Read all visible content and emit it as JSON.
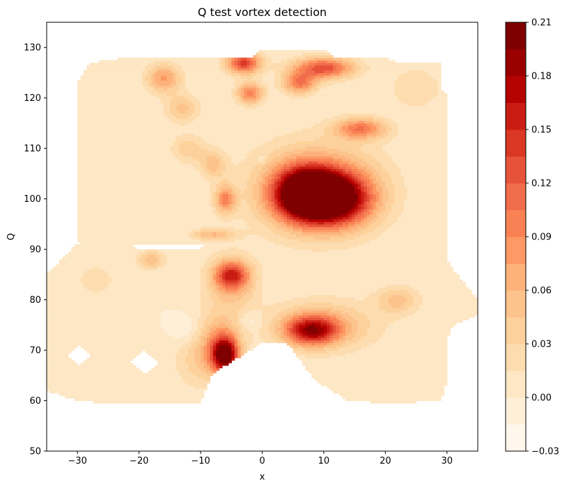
{
  "chart_data": {
    "type": "heatmap",
    "subtype": "filled-contour",
    "title": "Q test vortex detection",
    "xlabel": "x",
    "ylabel": "Q",
    "xlim": [
      -35,
      35
    ],
    "ylim": [
      50,
      135
    ],
    "xticks": [
      -30,
      -20,
      -10,
      0,
      10,
      20,
      30
    ],
    "yticks": [
      50,
      60,
      70,
      80,
      90,
      100,
      110,
      120,
      130
    ],
    "colormap": "OrRd",
    "colorbar": {
      "min": -0.03,
      "max": 0.21,
      "levels": [
        -0.03,
        -0.015,
        0.0,
        0.015,
        0.03,
        0.045,
        0.06,
        0.075,
        0.09,
        0.105,
        0.12,
        0.135,
        0.15,
        0.165,
        0.18,
        0.195,
        0.21
      ],
      "ticks": [
        "0.21",
        "0.18",
        "0.15",
        "0.12",
        "0.09",
        "0.06",
        "0.03",
        "0.00",
        "−0.03"
      ],
      "tick_values": [
        0.21,
        0.18,
        0.15,
        0.12,
        0.09,
        0.06,
        0.03,
        0.0,
        -0.03
      ]
    },
    "background_value": 0.0,
    "data_region_polygon": [
      [
        -35,
        85
      ],
      [
        -31,
        90
      ],
      [
        -30,
        91
      ],
      [
        -21,
        91
      ],
      [
        -20,
        90
      ],
      [
        -10,
        90
      ],
      [
        -9,
        91
      ],
      [
        -29,
        91
      ],
      [
        -30,
        92
      ],
      [
        -30,
        123
      ],
      [
        -28,
        127
      ],
      [
        -22,
        128
      ],
      [
        -2,
        128
      ],
      [
        0,
        129.5
      ],
      [
        10,
        129.5
      ],
      [
        12,
        128
      ],
      [
        20,
        128
      ],
      [
        22,
        127
      ],
      [
        29,
        127
      ],
      [
        29,
        122
      ],
      [
        30,
        121
      ],
      [
        30,
        88
      ],
      [
        31,
        86
      ],
      [
        35,
        80
      ],
      [
        35,
        77
      ],
      [
        31,
        75
      ],
      [
        30,
        72
      ],
      [
        30,
        64
      ],
      [
        29,
        60
      ],
      [
        21,
        59.5
      ],
      [
        14,
        60
      ],
      [
        10,
        63
      ],
      [
        8,
        65
      ],
      [
        4,
        71.5
      ],
      [
        0,
        71.5
      ],
      [
        -8,
        65.5
      ],
      [
        -10,
        59.5
      ],
      [
        -25,
        59.5
      ],
      [
        -30,
        60
      ],
      [
        -35,
        62
      ]
    ],
    "holes": [
      [
        [
          -31.5,
          69
        ],
        [
          -29.5,
          71
        ],
        [
          -27.5,
          69
        ],
        [
          -29.5,
          67
        ]
      ],
      [
        [
          -21.5,
          67.5
        ],
        [
          -19,
          70
        ],
        [
          -16.5,
          67.5
        ],
        [
          -19,
          65.5
        ]
      ]
    ],
    "peaks": [
      {
        "x": 7,
        "y": 101,
        "value": 0.21,
        "sx": 3.5,
        "sy": 3.5
      },
      {
        "x": 12,
        "y": 100,
        "value": 0.17,
        "sx": 4,
        "sy": 3.5
      },
      {
        "x": 9,
        "y": 102,
        "value": 0.1,
        "sx": 7,
        "sy": 6
      },
      {
        "x": 8,
        "y": 74,
        "value": 0.15,
        "sx": 3,
        "sy": 2
      },
      {
        "x": 10,
        "y": 75,
        "value": 0.06,
        "sx": 6,
        "sy": 3.5
      },
      {
        "x": -6,
        "y": 69,
        "value": 0.19,
        "sx": 1.5,
        "sy": 2.5
      },
      {
        "x": -7,
        "y": 72,
        "value": 0.06,
        "sx": 2.5,
        "sy": 4
      },
      {
        "x": -5,
        "y": 85,
        "value": 0.12,
        "sx": 2,
        "sy": 2
      },
      {
        "x": -5,
        "y": 83,
        "value": 0.05,
        "sx": 3,
        "sy": 4
      },
      {
        "x": -3,
        "y": 127,
        "value": 0.14,
        "sx": 2,
        "sy": 1.5
      },
      {
        "x": -2,
        "y": 121,
        "value": 0.1,
        "sx": 1.5,
        "sy": 1.5
      },
      {
        "x": 10,
        "y": 126,
        "value": 0.13,
        "sx": 3.5,
        "sy": 1.5
      },
      {
        "x": 6,
        "y": 123,
        "value": 0.1,
        "sx": 2,
        "sy": 1.5
      },
      {
        "x": 16,
        "y": 114,
        "value": 0.1,
        "sx": 3,
        "sy": 1.5
      },
      {
        "x": -16,
        "y": 124,
        "value": 0.08,
        "sx": 2,
        "sy": 2
      },
      {
        "x": -13,
        "y": 118,
        "value": 0.05,
        "sx": 2,
        "sy": 2
      },
      {
        "x": -6,
        "y": 100,
        "value": 0.09,
        "sx": 1.2,
        "sy": 2
      },
      {
        "x": -8,
        "y": 107,
        "value": 0.05,
        "sx": 1.5,
        "sy": 2
      },
      {
        "x": -8,
        "y": 93,
        "value": 0.06,
        "sx": 2.5,
        "sy": 0.8
      },
      {
        "x": -18,
        "y": 88,
        "value": 0.06,
        "sx": 1.5,
        "sy": 1.2
      },
      {
        "x": 22,
        "y": 80,
        "value": 0.05,
        "sx": 2.5,
        "sy": 2
      },
      {
        "x": -12,
        "y": 110,
        "value": 0.04,
        "sx": 2,
        "sy": 2
      },
      {
        "x": -10,
        "y": 68,
        "value": 0.035,
        "sx": 3,
        "sy": 4
      },
      {
        "x": 25,
        "y": 122,
        "value": 0.03,
        "sx": 3,
        "sy": 3
      },
      {
        "x": -27,
        "y": 84,
        "value": 0.02,
        "sx": 3,
        "sy": 3
      }
    ],
    "troughs": [
      {
        "x": -12,
        "y": 74,
        "value": -0.02,
        "sx": 1.8,
        "sy": 2
      },
      {
        "x": -2,
        "y": 76,
        "value": -0.02,
        "sx": 1.3,
        "sy": 1.3
      },
      {
        "x": 0,
        "y": 108,
        "value": -0.02,
        "sx": 0.6,
        "sy": 0.6
      }
    ]
  }
}
